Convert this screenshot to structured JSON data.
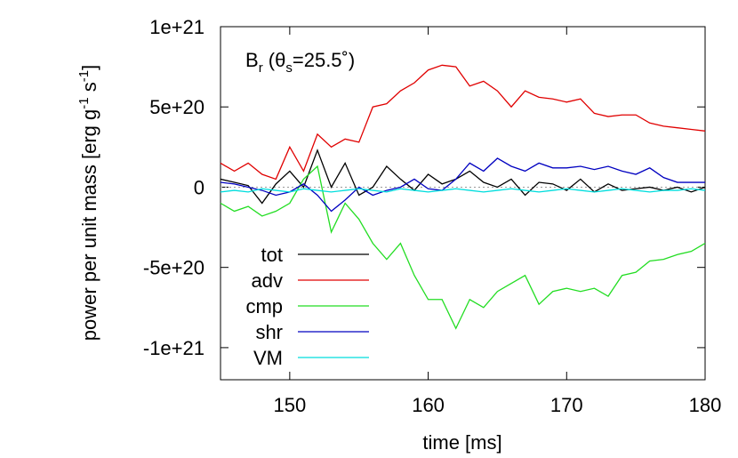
{
  "chart_data": {
    "type": "line",
    "annotation_parts": [
      "B",
      "r",
      " (θ",
      "s",
      "=25.5˚)"
    ],
    "ylabel_parts": [
      "power per unit mass [erg g",
      "-1",
      " s",
      "-1",
      "]"
    ],
    "xlabel": "time [ms]",
    "x": [
      145,
      146,
      147,
      148,
      149,
      150,
      151,
      152,
      153,
      154,
      155,
      156,
      157,
      158,
      159,
      160,
      161,
      162,
      163,
      164,
      165,
      166,
      167,
      168,
      169,
      170,
      171,
      172,
      173,
      174,
      175,
      176,
      177,
      178,
      179,
      180
    ],
    "xlim": [
      145,
      180
    ],
    "xticks": [
      150,
      160,
      170,
      180
    ],
    "ylim": [
      -1.2e+21,
      1e+21
    ],
    "yticks": [
      {
        "value": 1e+21,
        "label": "1e+21"
      },
      {
        "value": 5e+20,
        "label": "5e+20"
      },
      0,
      {
        "value": -5e+20,
        "label": "-5e+20"
      },
      {
        "value": -1e+21,
        "label": "-1e+21"
      }
    ],
    "zeroline": true,
    "legend": "lower-left",
    "series": [
      {
        "name": "tot",
        "color": "#000000",
        "values": [
          5e+19,
          3e+19,
          1e+19,
          -1e+20,
          2e+19,
          1e+20,
          0,
          2.3e+20,
          0,
          1.5e+20,
          -5e+19,
          0,
          1.3e+20,
          5e+19,
          -2e+19,
          8e+19,
          2e+19,
          5e+19,
          1e+20,
          3e+19,
          0,
          5e+19,
          -5e+19,
          3e+19,
          2e+19,
          -2e+19,
          5e+19,
          -3e+19,
          2e+19,
          -2e+19,
          -1e+19,
          0,
          -2e+19,
          0,
          -3e+19,
          0
        ]
      },
      {
        "name": "adv",
        "color": "#e00000",
        "values": [
          1.5e+20,
          1e+20,
          1.5e+20,
          8e+19,
          5e+19,
          2.5e+20,
          1e+20,
          3.3e+20,
          2.5e+20,
          3e+20,
          2.8e+20,
          5e+20,
          5.2e+20,
          6e+20,
          6.5e+20,
          7.3e+20,
          7.6e+20,
          7.5e+20,
          6.3e+20,
          6.6e+20,
          6e+20,
          5e+20,
          6e+20,
          5.6e+20,
          5.5e+20,
          5.3e+20,
          5.5e+20,
          4.6e+20,
          4.4e+20,
          4.5e+20,
          4.5e+20,
          4e+20,
          3.8e+20,
          3.7e+20,
          3.6e+20,
          3.5e+20
        ]
      },
      {
        "name": "cmp",
        "color": "#22dd22",
        "values": [
          -1e+20,
          -1.5e+20,
          -1.2e+20,
          -1.8e+20,
          -1.5e+20,
          -1e+20,
          5e+19,
          1.3e+20,
          -2.8e+20,
          -1e+20,
          -2e+20,
          -3.5e+20,
          -4.5e+20,
          -3.5e+20,
          -5.5e+20,
          -7e+20,
          -7e+20,
          -8.8e+20,
          -7e+20,
          -7.5e+20,
          -6.5e+20,
          -6e+20,
          -5.5e+20,
          -7.3e+20,
          -6.5e+20,
          -6.3e+20,
          -6.5e+20,
          -6.3e+20,
          -6.8e+20,
          -5.5e+20,
          -5.3e+20,
          -4.6e+20,
          -4.5e+20,
          -4.2e+20,
          -4e+20,
          -3.5e+20
        ]
      },
      {
        "name": "shr",
        "color": "#0000c0",
        "values": [
          3e+19,
          2e+19,
          0,
          -2e+19,
          -5e+19,
          -3e+19,
          2e+19,
          -5e+19,
          -1.5e+20,
          -8e+19,
          0,
          -5e+19,
          -2e+19,
          0,
          5e+19,
          -1e+19,
          -2e+19,
          5e+19,
          1.5e+20,
          1e+20,
          1.8e+20,
          1.3e+20,
          1e+20,
          1.5e+20,
          1.2e+20,
          1.2e+20,
          1.3e+20,
          1.1e+20,
          1.3e+20,
          1e+20,
          8e+19,
          1.2e+20,
          6e+19,
          3e+19,
          3e+19,
          3e+19
        ]
      },
      {
        "name": "VM",
        "color": "#00dddd",
        "values": [
          -3e+19,
          -2e+19,
          -3e+19,
          -1e+19,
          -2e+19,
          -3e+19,
          -1e+19,
          -2e+19,
          -3e+19,
          -2e+19,
          -1e+19,
          -2e+19,
          -3e+19,
          -1e+19,
          -2e+19,
          -3e+19,
          -2e+19,
          -1e+19,
          -2e+19,
          -3e+19,
          -2e+19,
          -1e+19,
          -2e+19,
          -3e+19,
          -2e+19,
          -1e+19,
          -2e+19,
          -3e+19,
          -2e+19,
          -1e+19,
          -2e+19,
          -3e+19,
          -2e+19,
          -2e+19,
          -1e+19,
          -2e+19
        ]
      }
    ]
  }
}
